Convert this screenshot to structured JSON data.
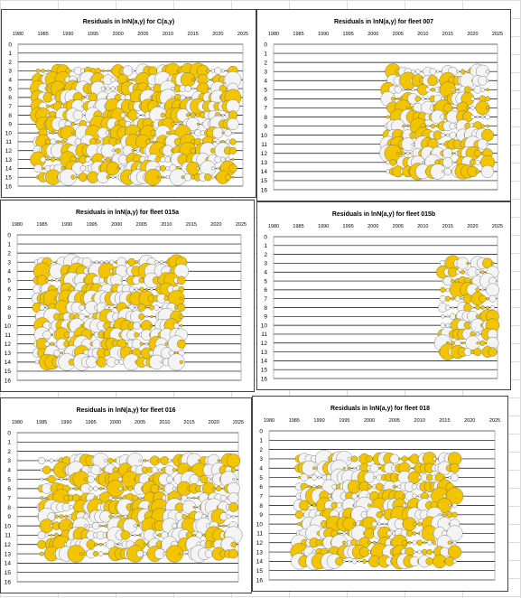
{
  "colors": {
    "positive": "#f2c500",
    "negative": "#f4f4f4",
    "outline": "#555555",
    "gridline": "#000000"
  },
  "chart_data": [
    {
      "type": "scatter",
      "title": "Residuals in lnN(a,y) for C(a,y)",
      "xticks": [
        "1980",
        "1985",
        "1990",
        "1995",
        "2000",
        "2005",
        "2010",
        "2015",
        "2020",
        "2025"
      ],
      "yticks": [
        "0",
        "1",
        "2",
        "3",
        "4",
        "5",
        "6",
        "7",
        "8",
        "9",
        "10",
        "11",
        "12",
        "13",
        "14",
        "15",
        "16"
      ],
      "xlim": [
        1980,
        2025
      ],
      "ylim": [
        0,
        16
      ],
      "years": [
        1984,
        2023
      ],
      "ages": [
        3,
        15
      ]
    },
    {
      "type": "scatter",
      "title": "Residuals in lnN(a,y) for fleet 007",
      "xticks": [
        "1980",
        "1985",
        "1990",
        "1995",
        "2000",
        "2005",
        "2010",
        "2015",
        "2020",
        "2025"
      ],
      "yticks": [
        "0",
        "1",
        "2",
        "3",
        "4",
        "5",
        "6",
        "7",
        "8",
        "9",
        "10",
        "11",
        "12",
        "13",
        "14",
        "15",
        "16"
      ],
      "xlim": [
        1980,
        2025
      ],
      "ylim": [
        0,
        16
      ],
      "years": [
        2003,
        2023
      ],
      "ages": [
        3,
        14
      ]
    },
    {
      "type": "scatter",
      "title": "Residuals in lnN(a,y) for fleet 015a",
      "xticks": [
        "1980",
        "1985",
        "1990",
        "1995",
        "2000",
        "2005",
        "2010",
        "2015",
        "2020",
        "2025"
      ],
      "yticks": [
        "0",
        "1",
        "2",
        "3",
        "4",
        "5",
        "6",
        "7",
        "8",
        "9",
        "10",
        "11",
        "12",
        "13",
        "14",
        "15",
        "16"
      ],
      "xlim": [
        1980,
        2025
      ],
      "ylim": [
        0,
        16
      ],
      "years": [
        1984,
        2013
      ],
      "ages": [
        3,
        14
      ]
    },
    {
      "type": "scatter",
      "title": "Residuals in lnN(a,y) for fleet 015b",
      "xticks": [
        "1980",
        "1985",
        "1990",
        "1995",
        "2000",
        "2005",
        "2010",
        "2015",
        "2020",
        "2025"
      ],
      "yticks": [
        "0",
        "1",
        "2",
        "3",
        "4",
        "5",
        "6",
        "7",
        "8",
        "9",
        "10",
        "11",
        "12",
        "13",
        "14",
        "15",
        "16"
      ],
      "xlim": [
        1980,
        2025
      ],
      "ylim": [
        0,
        16
      ],
      "years": [
        2014,
        2024
      ],
      "ages": [
        3,
        13
      ]
    },
    {
      "type": "scatter",
      "title": "Residuals in lnN(a,y) for fleet 016",
      "xticks": [
        "1980",
        "1985",
        "1990",
        "1995",
        "2000",
        "2005",
        "2010",
        "2015",
        "2020",
        "2025"
      ],
      "yticks": [
        "0",
        "1",
        "2",
        "3",
        "4",
        "5",
        "6",
        "7",
        "8",
        "9",
        "10",
        "11",
        "12",
        "13",
        "14",
        "15",
        "16"
      ],
      "xlim": [
        1980,
        2025
      ],
      "ylim": [
        0,
        16
      ],
      "years": [
        1985,
        2024
      ],
      "ages": [
        3,
        13
      ]
    },
    {
      "type": "scatter",
      "title": "Residuals in lnN(a,y) for fleet 018",
      "xticks": [
        "1980",
        "1985",
        "1990",
        "1995",
        "2000",
        "2005",
        "2010",
        "2015",
        "2020",
        "2025"
      ],
      "yticks": [
        "0",
        "1",
        "2",
        "3",
        "4",
        "5",
        "6",
        "7",
        "8",
        "9",
        "10",
        "11",
        "12",
        "13",
        "14",
        "15",
        "16"
      ],
      "xlim": [
        1980,
        2025
      ],
      "ylim": [
        0,
        16
      ],
      "years": [
        1986,
        2017
      ],
      "ages": [
        3,
        14
      ]
    }
  ]
}
